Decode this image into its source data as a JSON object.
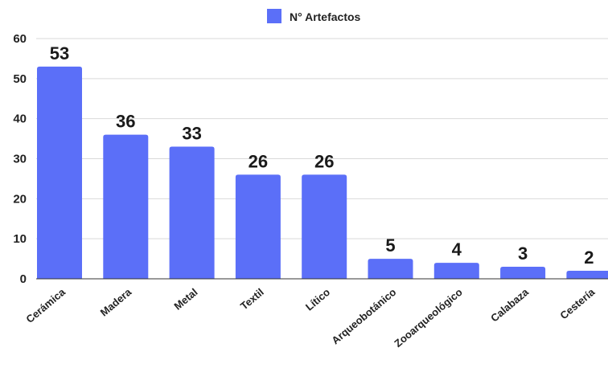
{
  "chart_data": {
    "type": "bar",
    "categories": [
      "Cerámica",
      "Madera",
      "Metal",
      "Textil",
      "Lítico",
      "Arqueobotánico",
      "Zooarqueológico",
      "Calabaza",
      "Cestería"
    ],
    "series": [
      {
        "name": "N° Artefactos",
        "values": [
          53,
          36,
          33,
          26,
          26,
          5,
          4,
          3,
          2
        ]
      }
    ],
    "yticks": [
      "0",
      "10",
      "20",
      "30",
      "40",
      "50",
      "60"
    ],
    "ylim": [
      0,
      60
    ],
    "grid": true,
    "legend_position": "top-center",
    "bar_color": "#5b6ff8",
    "data_labels": true
  }
}
